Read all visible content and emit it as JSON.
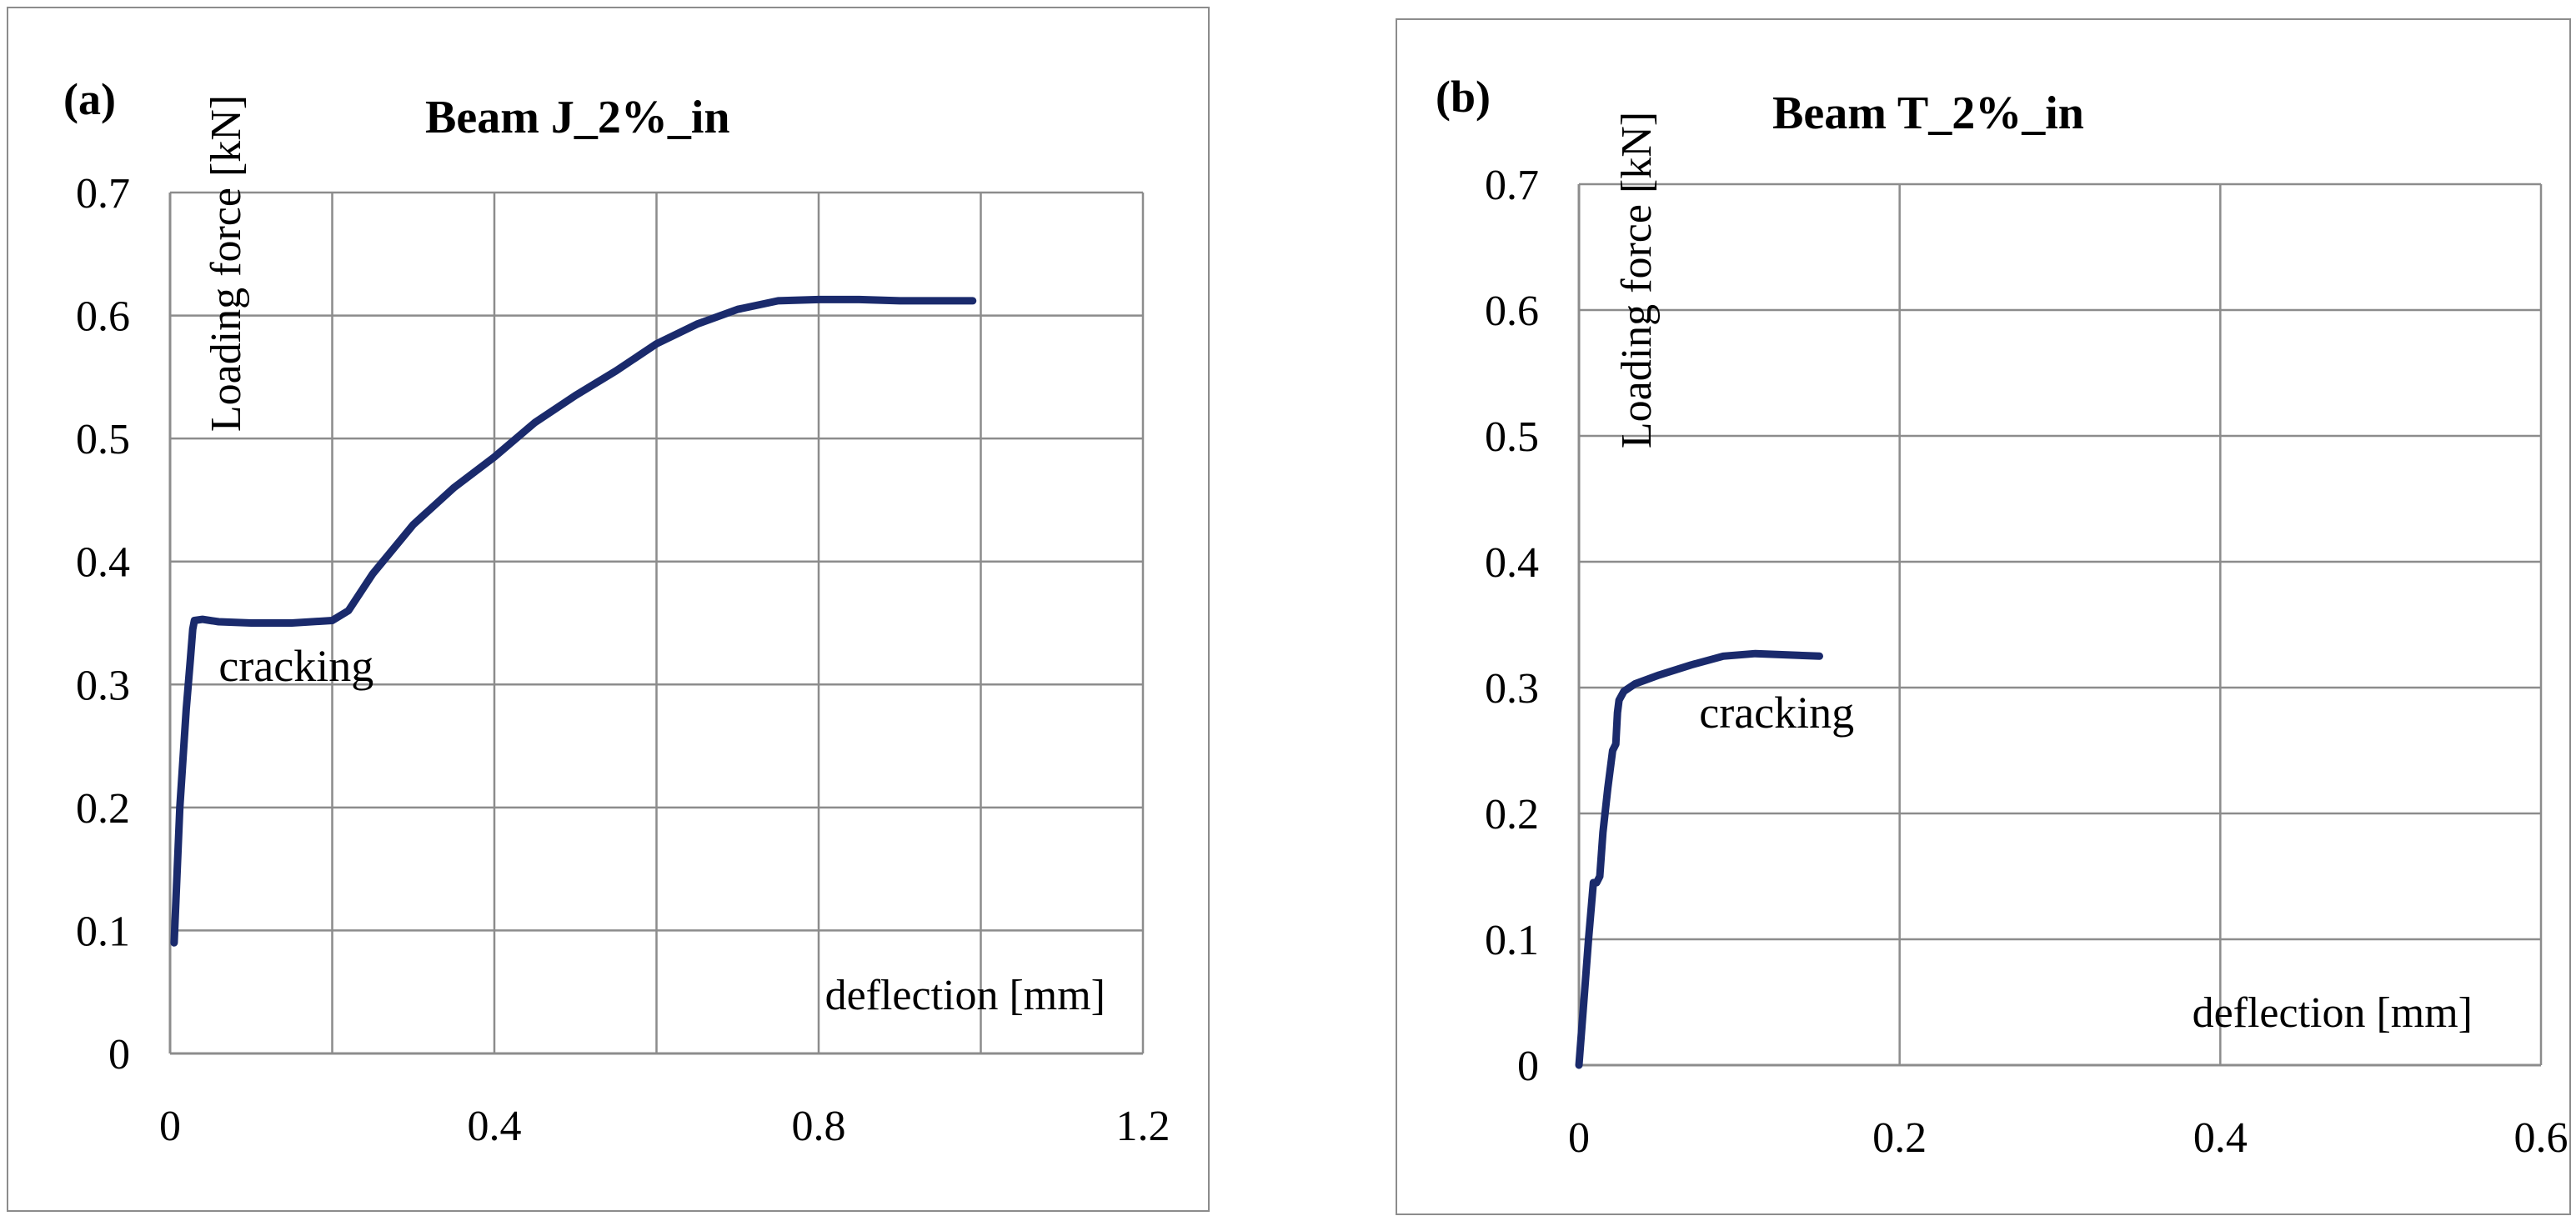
{
  "chart_data": [
    {
      "type": "line",
      "panel_label": "(a)",
      "title": "Beam J_2%_in",
      "xlabel": "deflection [mm]",
      "ylabel": "Loading force [kN]",
      "xlim": [
        0,
        1.2
      ],
      "ylim": [
        0,
        0.7
      ],
      "x_ticks": [
        0,
        0.4,
        0.8,
        1.2
      ],
      "x_tick_labels": [
        "0",
        "0.4",
        "0.8",
        "1.2"
      ],
      "x_grid": [
        0,
        0.2,
        0.4,
        0.6,
        0.8,
        1.0,
        1.2
      ],
      "y_ticks": [
        0,
        0.1,
        0.2,
        0.3,
        0.4,
        0.5,
        0.6,
        0.7
      ],
      "y_tick_labels": [
        "0",
        "0.1",
        "0.2",
        "0.3",
        "0.4",
        "0.5",
        "0.6",
        "0.7"
      ],
      "annotation": {
        "text": "cracking",
        "x": 0.06,
        "y": 0.315
      },
      "series": [
        {
          "name": "Beam J_2%_in",
          "color": "#1a2a6c",
          "x": [
            0.005,
            0.012,
            0.02,
            0.025,
            0.028,
            0.03,
            0.04,
            0.06,
            0.1,
            0.15,
            0.2,
            0.22,
            0.25,
            0.3,
            0.35,
            0.4,
            0.45,
            0.5,
            0.55,
            0.6,
            0.65,
            0.7,
            0.75,
            0.8,
            0.85,
            0.9,
            0.95,
            0.99
          ],
          "values": [
            0.09,
            0.2,
            0.28,
            0.32,
            0.345,
            0.352,
            0.353,
            0.351,
            0.35,
            0.35,
            0.352,
            0.36,
            0.39,
            0.43,
            0.46,
            0.485,
            0.513,
            0.535,
            0.555,
            0.577,
            0.593,
            0.605,
            0.612,
            0.613,
            0.613,
            0.612,
            0.612,
            0.612
          ]
        }
      ]
    },
    {
      "type": "line",
      "panel_label": "(b)",
      "title": "Beam T_2%_in",
      "xlabel": "deflection [mm]",
      "ylabel": "Loading force [kN]",
      "xlim": [
        0,
        0.6
      ],
      "ylim": [
        0,
        0.7
      ],
      "x_ticks": [
        0,
        0.2,
        0.4,
        0.6
      ],
      "x_tick_labels": [
        "0",
        "0.2",
        "0.4",
        "0.6"
      ],
      "x_grid": [
        0,
        0.2,
        0.4,
        0.6
      ],
      "y_ticks": [
        0,
        0.1,
        0.2,
        0.3,
        0.4,
        0.5,
        0.6,
        0.7
      ],
      "y_tick_labels": [
        "0",
        "0.1",
        "0.2",
        "0.3",
        "0.4",
        "0.5",
        "0.6",
        "0.7"
      ],
      "annotation": {
        "text": "cracking",
        "x": 0.075,
        "y": 0.28
      },
      "series": [
        {
          "name": "Beam T_2%_in",
          "color": "#1a2a6c",
          "x": [
            0.0,
            0.003,
            0.006,
            0.009,
            0.011,
            0.013,
            0.015,
            0.018,
            0.021,
            0.023,
            0.024,
            0.025,
            0.028,
            0.035,
            0.05,
            0.07,
            0.09,
            0.11,
            0.13,
            0.15
          ],
          "values": [
            0.0,
            0.05,
            0.1,
            0.145,
            0.145,
            0.15,
            0.185,
            0.22,
            0.25,
            0.255,
            0.28,
            0.29,
            0.297,
            0.303,
            0.31,
            0.318,
            0.325,
            0.327,
            0.326,
            0.325
          ]
        }
      ]
    }
  ]
}
